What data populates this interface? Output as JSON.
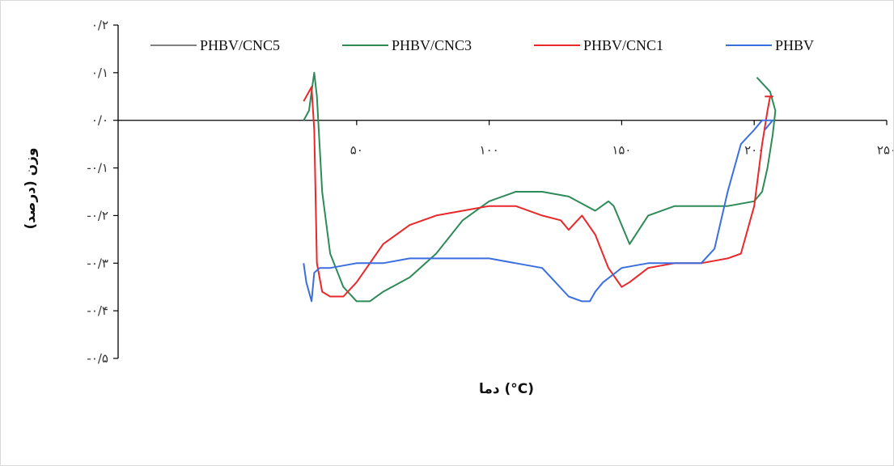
{
  "chart_data": {
    "type": "line",
    "title": "",
    "xlabel": "دما (°C)",
    "ylabel": "وزن (درصد)",
    "xlim": [
      -40,
      250
    ],
    "ylim": [
      -0.5,
      0.2
    ],
    "x_ticks": [
      {
        "value": 50,
        "label": "۵۰"
      },
      {
        "value": 100,
        "label": "۱۰۰"
      },
      {
        "value": 150,
        "label": "۱۵۰"
      },
      {
        "value": 200,
        "label": "۲۰۰"
      },
      {
        "value": 250,
        "label": "۲۵۰"
      }
    ],
    "y_ticks": [
      {
        "value": 0.2,
        "label": "۰/۲"
      },
      {
        "value": 0.1,
        "label": "۰/۱"
      },
      {
        "value": 0.0,
        "label": "۰/۰"
      },
      {
        "value": -0.1,
        "label": "-۰/۱"
      },
      {
        "value": -0.2,
        "label": "-۰/۲"
      },
      {
        "value": -0.3,
        "label": "-۰/۳"
      },
      {
        "value": -0.4,
        "label": "-۰/۴"
      },
      {
        "value": -0.5,
        "label": "-۰/۵"
      }
    ],
    "grid": false,
    "legend_position": "top",
    "legend": [
      "PHBV/CNC5",
      "PHBV/CNC3",
      "PHBV/CNC1",
      "PHBV"
    ],
    "series": [
      {
        "name": "PHBV/CNC5",
        "color": "#808080",
        "x": [],
        "y": []
      },
      {
        "name": "PHBV/CNC3",
        "color": "#2e8b57",
        "x": [
          30,
          32,
          33,
          34,
          35,
          37,
          40,
          45,
          50,
          55,
          60,
          70,
          80,
          90,
          100,
          110,
          120,
          130,
          140,
          145,
          147,
          150,
          153,
          160,
          170,
          180,
          190,
          200,
          203,
          205,
          207,
          208,
          206,
          201
        ],
        "y": [
          0.0,
          0.02,
          0.06,
          0.1,
          0.05,
          -0.15,
          -0.28,
          -0.35,
          -0.38,
          -0.38,
          -0.36,
          -0.33,
          -0.28,
          -0.21,
          -0.17,
          -0.15,
          -0.15,
          -0.16,
          -0.19,
          -0.17,
          -0.18,
          -0.22,
          -0.26,
          -0.2,
          -0.18,
          -0.18,
          -0.18,
          -0.17,
          -0.15,
          -0.1,
          -0.03,
          0.02,
          0.06,
          0.09
        ]
      },
      {
        "name": "PHBV/CNC1",
        "color": "#e8282b",
        "x": [
          30,
          33,
          34,
          35,
          37,
          40,
          45,
          50,
          55,
          60,
          70,
          80,
          90,
          100,
          110,
          120,
          127,
          130,
          135,
          140,
          145,
          150,
          153,
          160,
          170,
          180,
          190,
          195,
          200,
          203,
          205,
          206,
          207,
          204
        ],
        "y": [
          0.04,
          0.07,
          -0.02,
          -0.3,
          -0.36,
          -0.37,
          -0.37,
          -0.34,
          -0.3,
          -0.26,
          -0.22,
          -0.2,
          -0.19,
          -0.18,
          -0.18,
          -0.2,
          -0.21,
          -0.23,
          -0.2,
          -0.24,
          -0.31,
          -0.35,
          -0.34,
          -0.31,
          -0.3,
          -0.3,
          -0.29,
          -0.28,
          -0.18,
          -0.05,
          0.02,
          0.05,
          0.05,
          0.05
        ]
      },
      {
        "name": "PHBV",
        "color": "#3b6fe0",
        "x": [
          30,
          31,
          33,
          34,
          36,
          40,
          50,
          60,
          70,
          80,
          90,
          100,
          110,
          120,
          125,
          130,
          135,
          138,
          140,
          143,
          150,
          160,
          170,
          180,
          185,
          190,
          195,
          200,
          203,
          206,
          207,
          204
        ],
        "y": [
          -0.3,
          -0.34,
          -0.38,
          -0.32,
          -0.31,
          -0.31,
          -0.3,
          -0.3,
          -0.29,
          -0.29,
          -0.29,
          -0.29,
          -0.3,
          -0.31,
          -0.34,
          -0.37,
          -0.38,
          -0.38,
          -0.36,
          -0.34,
          -0.31,
          -0.3,
          -0.3,
          -0.3,
          -0.27,
          -0.15,
          -0.05,
          -0.02,
          0.0,
          0.0,
          0.0,
          -0.02
        ]
      }
    ]
  }
}
